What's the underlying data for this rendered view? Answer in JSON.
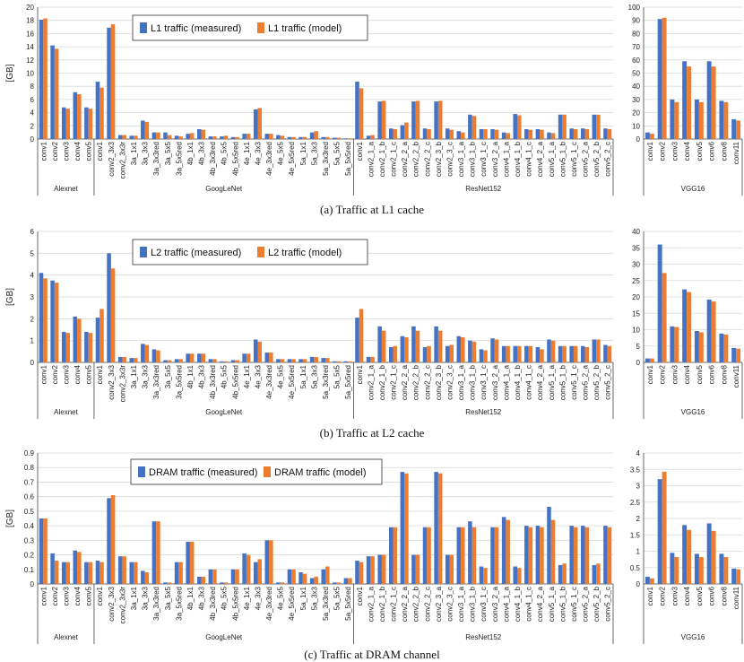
{
  "colors": {
    "measured": "#4472C4",
    "model": "#ED7D31",
    "grid": "#d9d9d9",
    "axis": "#444444"
  },
  "chart_data": [
    {
      "type": "bar",
      "caption": "(a) Traffic at L1 cache",
      "ylabel": "[GB]",
      "series_names": [
        "L1 traffic (measured)",
        "L1 traffic (model)"
      ],
      "main": {
        "ylim": [
          0,
          20
        ],
        "yticks": [
          0,
          2,
          4,
          6,
          8,
          10,
          12,
          14,
          16,
          18,
          20
        ],
        "groups": [
          {
            "label": "Alexnet",
            "categories": [
              "conv1",
              "conv2",
              "conv3",
              "conv4",
              "conv5"
            ],
            "measured": [
              18.1,
              14.2,
              4.8,
              7.1,
              4.8
            ],
            "model": [
              18.3,
              13.7,
              4.6,
              6.8,
              4.6
            ]
          },
          {
            "label": "GoogLeNet",
            "categories": [
              "conv1",
              "conv2_3x3",
              "conv2_3x3r",
              "3a_1x1",
              "3a_3x3",
              "3a_3x3red",
              "3a_5x5",
              "3a_5x5red",
              "4b_1x1",
              "4b_3x3",
              "4b_3x3red",
              "4b_5x5",
              "4b_5x5red",
              "4e_1x1",
              "4e_3x3",
              "4e_3x3red",
              "4e_5x5",
              "4e_5x5red",
              "5a_1x1",
              "5a_3x3",
              "5a_3x3red",
              "5a_5x5",
              "5a_5x5red"
            ],
            "measured": [
              8.7,
              16.9,
              0.6,
              0.5,
              2.8,
              1.0,
              1.0,
              0.5,
              0.8,
              1.5,
              0.4,
              0.4,
              0.3,
              0.8,
              4.5,
              0.8,
              0.6,
              0.3,
              0.3,
              1.0,
              0.3,
              0.2,
              0.1
            ],
            "model": [
              7.8,
              17.4,
              0.6,
              0.5,
              2.6,
              1.0,
              0.6,
              0.4,
              0.9,
              1.4,
              0.4,
              0.5,
              0.3,
              0.8,
              4.7,
              0.8,
              0.5,
              0.3,
              0.3,
              1.2,
              0.3,
              0.2,
              0.1
            ]
          },
          {
            "label": "ResNet152",
            "categories": [
              "conv1",
              "conv2_1_a",
              "conv2_1_b",
              "conv2_1_c",
              "conv2_2_a",
              "conv2_2_b",
              "conv2_2_c",
              "conv2_3_b",
              "conv2_3_c",
              "conv3_1_a",
              "conv3_1_b",
              "conv3_1_c",
              "conv3_2_a",
              "conv4_1_a",
              "conv4_1_b",
              "conv4_1_c",
              "conv4_2_a",
              "conv5_1_a",
              "conv5_1_b",
              "conv5_1_c",
              "conv5_2_a",
              "conv5_2_b",
              "conv5_2_c"
            ],
            "measured": [
              8.7,
              0.5,
              5.7,
              1.6,
              2.1,
              5.7,
              1.6,
              5.7,
              1.6,
              1.2,
              3.7,
              1.5,
              1.5,
              1.0,
              3.8,
              1.5,
              1.5,
              1.0,
              3.7,
              1.6,
              1.6,
              3.7,
              1.6
            ],
            "model": [
              7.7,
              0.6,
              5.8,
              1.5,
              2.5,
              5.8,
              1.5,
              5.8,
              1.4,
              1.0,
              3.5,
              1.5,
              1.4,
              0.9,
              3.6,
              1.4,
              1.4,
              0.9,
              3.7,
              1.5,
              1.5,
              3.7,
              1.5
            ]
          }
        ]
      },
      "side": {
        "label": "VGG16",
        "ylim": [
          0,
          100
        ],
        "yticks": [
          0,
          10,
          20,
          30,
          40,
          50,
          60,
          70,
          80,
          90,
          100
        ],
        "categories": [
          "conv1",
          "conv2",
          "conv3",
          "conv4",
          "conv5",
          "conv6",
          "conv8",
          "conv11"
        ],
        "measured": [
          5,
          91,
          30,
          59,
          30,
          59,
          29,
          15
        ],
        "model": [
          4,
          92,
          28,
          55,
          28,
          55,
          28,
          14
        ]
      }
    },
    {
      "type": "bar",
      "caption": "(b) Traffic at L2 cache",
      "ylabel": "[GB]",
      "series_names": [
        "L2 traffic (measured)",
        "L2 traffic (model)"
      ],
      "main": {
        "ylim": [
          0,
          6
        ],
        "yticks": [
          0,
          1,
          2,
          3,
          4,
          5,
          6
        ],
        "groups": [
          {
            "label": "Alexnet",
            "categories": [
              "conv1",
              "conv2",
              "conv3",
              "conv4",
              "conv5"
            ],
            "measured": [
              4.1,
              3.75,
              1.4,
              2.1,
              1.4
            ],
            "model": [
              3.85,
              3.65,
              1.35,
              2.0,
              1.35
            ]
          },
          {
            "label": "GoogLeNet",
            "categories": [
              "conv1",
              "conv2_3x3",
              "conv2_3x3r",
              "3a_1x1",
              "3a_3x3",
              "3a_3x3red",
              "3a_5x5",
              "3a_5x5red",
              "4b_1x1",
              "4b_3x3",
              "4b_3x3red",
              "4b_5x5",
              "4b_5x5red",
              "4e_1x1",
              "4e_3x3",
              "4e_3x3red",
              "4e_5x5",
              "4e_5x5red",
              "5a_1x1",
              "5a_3x3",
              "5a_3x3red",
              "5a_5x5",
              "5a_5x5red"
            ],
            "measured": [
              2.05,
              5.0,
              0.25,
              0.2,
              0.85,
              0.6,
              0.1,
              0.15,
              0.4,
              0.4,
              0.15,
              0.05,
              0.1,
              0.4,
              1.05,
              0.45,
              0.15,
              0.15,
              0.15,
              0.25,
              0.2,
              0.05,
              0.05
            ],
            "model": [
              2.45,
              4.3,
              0.25,
              0.2,
              0.8,
              0.55,
              0.1,
              0.15,
              0.4,
              0.4,
              0.15,
              0.05,
              0.1,
              0.4,
              0.95,
              0.45,
              0.15,
              0.15,
              0.15,
              0.25,
              0.2,
              0.05,
              0.05
            ]
          },
          {
            "label": "ResNet152",
            "categories": [
              "conv1",
              "conv2_1_a",
              "conv2_1_b",
              "conv2_1_c",
              "conv2_2_a",
              "conv2_2_b",
              "conv2_2_c",
              "conv2_3_b",
              "conv2_3_c",
              "conv3_1_a",
              "conv3_1_b",
              "conv3_1_c",
              "conv3_2_a",
              "conv4_1_a",
              "conv4_1_b",
              "conv4_1_c",
              "conv4_2_a",
              "conv5_1_a",
              "conv5_1_b",
              "conv5_1_c",
              "conv5_2_a",
              "conv5_2_b",
              "conv5_2_c"
            ],
            "measured": [
              2.05,
              0.25,
              1.65,
              0.7,
              1.2,
              1.65,
              0.7,
              1.65,
              0.75,
              1.2,
              1.0,
              0.6,
              1.1,
              0.75,
              0.75,
              0.75,
              0.7,
              1.05,
              0.75,
              0.75,
              0.75,
              1.05,
              0.8
            ],
            "model": [
              2.45,
              0.25,
              1.45,
              0.75,
              1.15,
              1.45,
              0.75,
              1.45,
              0.8,
              1.15,
              0.95,
              0.55,
              1.05,
              0.75,
              0.75,
              0.75,
              0.6,
              1.0,
              0.75,
              0.75,
              0.7,
              1.05,
              0.75
            ]
          }
        ]
      },
      "side": {
        "label": "VGG16",
        "ylim": [
          0,
          40
        ],
        "yticks": [
          0,
          5,
          10,
          15,
          20,
          25,
          30,
          35,
          40
        ],
        "categories": [
          "conv1",
          "conv2",
          "conv3",
          "conv4",
          "conv5",
          "conv6",
          "conv8",
          "conv11"
        ],
        "measured": [
          1.2,
          36,
          11,
          22.3,
          9.6,
          19.2,
          8.8,
          4.4
        ],
        "model": [
          1.2,
          27.3,
          10.8,
          21.5,
          9.2,
          18.6,
          8.5,
          4.2
        ]
      }
    },
    {
      "type": "bar",
      "caption": "(c) Traffic at DRAM channel",
      "ylabel": "[GB]",
      "series_names": [
        "DRAM traffic (measured)",
        "DRAM traffic (model)"
      ],
      "main": {
        "ylim": [
          0,
          0.9
        ],
        "yticks": [
          0,
          0.1,
          0.2,
          0.3,
          0.4,
          0.5,
          0.6,
          0.7,
          0.8,
          0.9
        ],
        "groups": [
          {
            "label": "Alexnet",
            "categories": [
              "conv1",
              "conv2",
              "conv3",
              "conv4",
              "conv5"
            ],
            "measured": [
              0.45,
              0.21,
              0.15,
              0.23,
              0.15
            ],
            "model": [
              0.45,
              0.16,
              0.15,
              0.22,
              0.15
            ]
          },
          {
            "label": "GoogLeNet",
            "categories": [
              "conv1",
              "conv2_3x3",
              "conv2_3x3r",
              "3a_1x1",
              "3a_3x3",
              "3a_3x3red",
              "3a_5x5",
              "3a_5x5red",
              "4b_1x1",
              "4b_3x3",
              "4b_3x3red",
              "4b_5x5",
              "4b_5x5red",
              "4e_1x1",
              "4e_3x3",
              "4e_3x3red",
              "4e_5x5",
              "4e_5x5red",
              "5a_1x1",
              "5a_3x3",
              "5a_3x3red",
              "5a_5x5",
              "5a_5x5red"
            ],
            "measured": [
              0.16,
              0.59,
              0.19,
              0.15,
              0.09,
              0.43,
              0.01,
              0.15,
              0.29,
              0.05,
              0.1,
              0.01,
              0.1,
              0.21,
              0.15,
              0.3,
              0.01,
              0.1,
              0.08,
              0.04,
              0.1,
              0.01,
              0.04
            ],
            "model": [
              0.15,
              0.61,
              0.19,
              0.15,
              0.08,
              0.43,
              0.01,
              0.15,
              0.29,
              0.05,
              0.1,
              0.01,
              0.1,
              0.2,
              0.17,
              0.3,
              0.01,
              0.1,
              0.07,
              0.05,
              0.12,
              0.01,
              0.04
            ]
          },
          {
            "label": "ResNet152",
            "categories": [
              "conv1",
              "conv2_1_a",
              "conv2_1_b",
              "conv2_1_c",
              "conv2_2_a",
              "conv2_2_b",
              "conv2_2_c",
              "conv2_3_a",
              "conv2_3_c",
              "conv3_1_a",
              "conv3_1_b",
              "conv3_1_c",
              "conv3_2_a",
              "conv4_1_a",
              "conv4_1_b",
              "conv4_1_c",
              "conv4_2_a",
              "conv5_1_a",
              "conv5_1_b",
              "conv5_1_c",
              "conv5_2_a",
              "conv5_2_b",
              "conv5_2_c"
            ],
            "measured": [
              0.16,
              0.19,
              0.2,
              0.39,
              0.77,
              0.2,
              0.39,
              0.77,
              0.2,
              0.39,
              0.43,
              0.12,
              0.39,
              0.46,
              0.12,
              0.4,
              0.4,
              0.53,
              0.13,
              0.4,
              0.4,
              0.13,
              0.4
            ],
            "model": [
              0.15,
              0.19,
              0.2,
              0.39,
              0.76,
              0.2,
              0.39,
              0.76,
              0.2,
              0.39,
              0.39,
              0.11,
              0.39,
              0.44,
              0.11,
              0.39,
              0.39,
              0.44,
              0.14,
              0.39,
              0.39,
              0.14,
              0.39
            ]
          }
        ]
      },
      "side": {
        "label": "VGG16",
        "ylim": [
          0,
          4.0
        ],
        "yticks": [
          0,
          0.5,
          1.0,
          1.5,
          2.0,
          2.5,
          3.0,
          3.5,
          4.0
        ],
        "categories": [
          "conv1",
          "conv2",
          "conv3",
          "conv4",
          "conv5",
          "conv6",
          "conv8",
          "conv11"
        ],
        "measured": [
          0.22,
          3.2,
          0.95,
          1.8,
          0.92,
          1.85,
          0.92,
          0.47
        ],
        "model": [
          0.17,
          3.43,
          0.82,
          1.65,
          0.82,
          1.62,
          0.82,
          0.45
        ]
      }
    }
  ]
}
